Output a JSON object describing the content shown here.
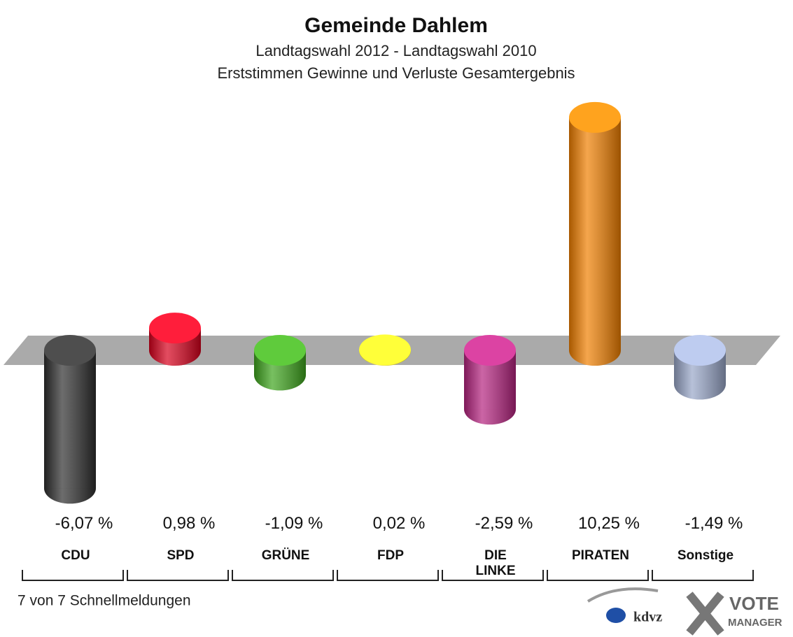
{
  "chart_data": {
    "type": "bar3d",
    "title": "Gemeinde Dahlem",
    "subtitle": [
      "Landtagswahl 2012 - Landtagswahl 2010",
      "Erststimmen Gewinne und Verluste Gesamtergebnis"
    ],
    "categories": [
      "CDU",
      "SPD",
      "GRÜNE",
      "FDP",
      "DIE LINKE",
      "PIRATEN",
      "Sonstige"
    ],
    "values": [
      -6.07,
      0.98,
      -1.09,
      0.02,
      -2.59,
      10.25,
      -1.49
    ],
    "value_labels": [
      "-6,07 %",
      "0,98 %",
      "-1,09 %",
      "0,02 %",
      "-2,59 %",
      "10,25 %",
      "-1,49 %"
    ],
    "colors": [
      "#2e2e2e",
      "#d7001c",
      "#3ea51d",
      "#f5e31a",
      "#b5237f",
      "#f07f00",
      "#98a6c8"
    ],
    "footer": "7 von 7 Schnellmeldungen",
    "logo": {
      "left": "kdvz",
      "right": [
        "VOTE",
        "MANAGER"
      ]
    }
  }
}
